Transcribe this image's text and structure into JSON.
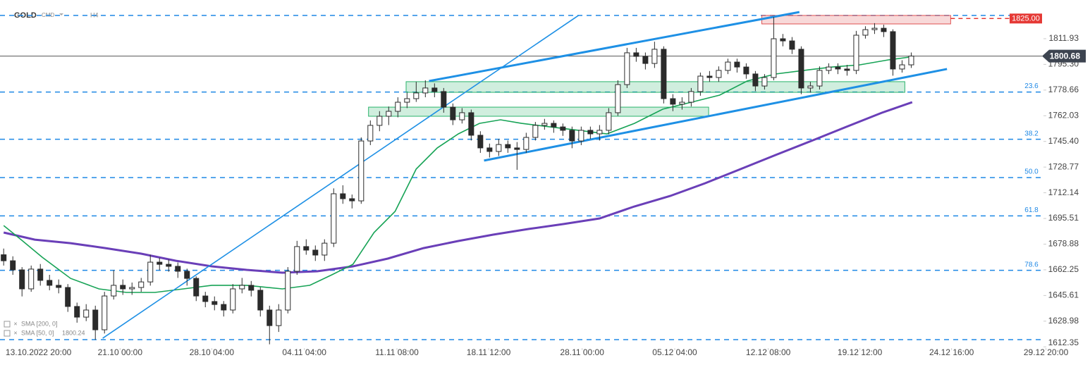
{
  "chart_data": {
    "type": "candlestick",
    "symbol": "GOLD",
    "market": "CMD",
    "interval": "H4",
    "xlim": [
      -0.4,
      118.5
    ],
    "ylim": [
      1612,
      1837
    ],
    "yticks": [
      1811.93,
      {
        "value": 1795.3,
        "label": "1795.30"
      },
      1778.66,
      1762.03,
      {
        "value": 1745.4,
        "label": "1745.40"
      },
      1728.77,
      1712.14,
      1695.51,
      1678.88,
      1662.25,
      1645.61,
      1628.98,
      1612.35
    ],
    "xticks": [
      {
        "value": 3.8,
        "label": "13.10.2022 20:00"
      },
      {
        "value": 12.7,
        "label": "21.10 00:00"
      },
      {
        "value": 22.7,
        "label": "28.10 04:00"
      },
      {
        "value": 32.8,
        "label": "04.11 04:00"
      },
      {
        "value": 42.9,
        "label": "11.11 08:00"
      },
      {
        "value": 52.9,
        "label": "18.11 12:00"
      },
      {
        "value": 63.1,
        "label": "28.11 00:00"
      },
      {
        "value": 73.2,
        "label": "05.12 04:00"
      },
      {
        "value": 83.4,
        "label": "12.12 08:00"
      },
      {
        "value": 93.4,
        "label": "19.12 12:00"
      },
      {
        "value": 103.4,
        "label": "24.12 16:00"
      },
      {
        "value": 113.7,
        "label": "29.12 20:00"
      }
    ],
    "up_color": "#ffffff",
    "down_color": "#2b2b2b",
    "wick_color": "#2b2b2b",
    "candles": [
      [
        1672,
        1676,
        1665,
        1668.1
      ],
      [
        1668.1,
        1671,
        1659,
        1662.2
      ],
      [
        1662.2,
        1664,
        1645,
        1649.9
      ],
      [
        1649.9,
        1665,
        1648,
        1662.7
      ],
      [
        1662.7,
        1666,
        1652,
        1655.4
      ],
      [
        1655.4,
        1659,
        1649,
        1652.2
      ],
      [
        1652.2,
        1656,
        1647,
        1650.8
      ],
      [
        1650.8,
        1653,
        1635,
        1638.5
      ],
      [
        1638.5,
        1641,
        1628,
        1631.6
      ],
      [
        1631.6,
        1640,
        1629,
        1636.2
      ],
      [
        1636.2,
        1639,
        1617,
        1623.4
      ],
      [
        1623.4,
        1648,
        1621,
        1645.3
      ],
      [
        1645.3,
        1662,
        1643,
        1652.2
      ],
      [
        1652.2,
        1656,
        1646,
        1649.9
      ],
      [
        1649.9,
        1654,
        1646,
        1650.8
      ],
      [
        1650.8,
        1657,
        1648,
        1654.4
      ],
      [
        1654.4,
        1672,
        1652,
        1667.2
      ],
      [
        1667.2,
        1670,
        1662,
        1665.8
      ],
      [
        1665.8,
        1669,
        1661,
        1664.5
      ],
      [
        1664.5,
        1667,
        1657,
        1661.3
      ],
      [
        1661.3,
        1663,
        1652,
        1656.7
      ],
      [
        1656.7,
        1658,
        1642,
        1645.3
      ],
      [
        1645.3,
        1648,
        1638,
        1641.7
      ],
      [
        1641.7,
        1645,
        1636,
        1639.8
      ],
      [
        1639.8,
        1642,
        1632,
        1636.2
      ],
      [
        1636.2,
        1653,
        1634,
        1649.9
      ],
      [
        1649.9,
        1657,
        1647,
        1652.2
      ],
      [
        1652.2,
        1655,
        1645,
        1649.0
      ],
      [
        1649.0,
        1651,
        1632,
        1636.2
      ],
      [
        1636.2,
        1639,
        1614,
        1626.1
      ],
      [
        1626.1,
        1640,
        1622,
        1636.2
      ],
      [
        1636.2,
        1664,
        1634,
        1661.3
      ],
      [
        1661.3,
        1681,
        1659,
        1677.3
      ],
      [
        1677.3,
        1682,
        1672,
        1675.0
      ],
      [
        1675.0,
        1678,
        1668,
        1671.8
      ],
      [
        1671.8,
        1682,
        1668,
        1679.5
      ],
      [
        1679.5,
        1715,
        1677,
        1711.5
      ],
      [
        1711.5,
        1717,
        1705,
        1708.3
      ],
      [
        1708.3,
        1711,
        1702,
        1706.9
      ],
      [
        1706.9,
        1748,
        1705,
        1745.7
      ],
      [
        1745.7,
        1759,
        1743,
        1755.8
      ],
      [
        1755.8,
        1765,
        1752,
        1761.7
      ],
      [
        1761.7,
        1768,
        1756,
        1764.9
      ],
      [
        1764.9,
        1774,
        1761,
        1770.8
      ],
      [
        1770.8,
        1777,
        1767,
        1773.1
      ],
      [
        1773.1,
        1784,
        1771,
        1776.8
      ],
      [
        1776.8,
        1785,
        1774,
        1780.0
      ],
      [
        1780.0,
        1783,
        1774,
        1777.7
      ],
      [
        1777.7,
        1780,
        1764,
        1767.6
      ],
      [
        1767.6,
        1770,
        1756,
        1759.4
      ],
      [
        1759.4,
        1767,
        1757,
        1764.0
      ],
      [
        1764.0,
        1766,
        1746,
        1749.4
      ],
      [
        1749.4,
        1752,
        1738,
        1741.2
      ],
      [
        1741.2,
        1744,
        1735,
        1738.9
      ],
      [
        1738.9,
        1747,
        1736,
        1743.4
      ],
      [
        1743.4,
        1746,
        1738,
        1741.2
      ],
      [
        1741.2,
        1745,
        1727,
        1740.2
      ],
      [
        1740.2,
        1751,
        1738,
        1748.0
      ],
      [
        1748.0,
        1758,
        1746,
        1755.8
      ],
      [
        1755.8,
        1760,
        1753,
        1757.1
      ],
      [
        1757.1,
        1759,
        1751,
        1754.8
      ],
      [
        1754.8,
        1757,
        1749,
        1752.6
      ],
      [
        1752.6,
        1755,
        1741,
        1745.7
      ],
      [
        1745.7,
        1755,
        1743,
        1752.6
      ],
      [
        1752.6,
        1755,
        1747,
        1750.3
      ],
      [
        1750.3,
        1756,
        1746,
        1752.6
      ],
      [
        1752.6,
        1767,
        1750,
        1764.0
      ],
      [
        1764.0,
        1785,
        1762,
        1782.2
      ],
      [
        1782.2,
        1806,
        1780,
        1802.8
      ],
      [
        1802.8,
        1806,
        1797,
        1800.5
      ],
      [
        1800.5,
        1803,
        1792,
        1795.9
      ],
      [
        1795.9,
        1810,
        1793,
        1805.1
      ],
      [
        1805.1,
        1807,
        1770,
        1773.1
      ],
      [
        1773.1,
        1776,
        1765,
        1769.5
      ],
      [
        1769.5,
        1774,
        1766,
        1770.8
      ],
      [
        1770.8,
        1780,
        1768,
        1777.7
      ],
      [
        1777.7,
        1790,
        1775,
        1787.7
      ],
      [
        1787.7,
        1791,
        1784,
        1786.8
      ],
      [
        1786.8,
        1794,
        1784,
        1791.4
      ],
      [
        1791.4,
        1799,
        1789,
        1796.8
      ],
      [
        1796.8,
        1799,
        1790,
        1793.6
      ],
      [
        1793.6,
        1796,
        1786,
        1789.1
      ],
      [
        1789.1,
        1791,
        1778,
        1781.3
      ],
      [
        1781.3,
        1789,
        1779,
        1786.8
      ],
      [
        1786.8,
        1826,
        1785,
        1811.9
      ],
      [
        1811.9,
        1815,
        1807,
        1810.5
      ],
      [
        1810.5,
        1813,
        1802,
        1805.1
      ],
      [
        1805.1,
        1807,
        1776,
        1780.0
      ],
      [
        1780.0,
        1784,
        1777,
        1781.3
      ],
      [
        1781.3,
        1794,
        1779,
        1791.4
      ],
      [
        1791.4,
        1796,
        1789,
        1793.6
      ],
      [
        1793.6,
        1796,
        1789,
        1792.3
      ],
      [
        1792.3,
        1795,
        1788,
        1791.4
      ],
      [
        1791.4,
        1817,
        1789,
        1814.2
      ],
      [
        1814.2,
        1820,
        1812,
        1817.8
      ],
      [
        1817.8,
        1822,
        1815,
        1818.7
      ],
      [
        1818.7,
        1821,
        1813,
        1816.5
      ],
      [
        1816.5,
        1818,
        1788,
        1792.3
      ],
      [
        1792.3,
        1798,
        1790,
        1795.0
      ],
      [
        1795.0,
        1803,
        1793,
        1800.68
      ]
    ],
    "series": [
      {
        "name": "SMA [200, 0]",
        "color": "#6a3fb8",
        "x": [
          0,
          3.4,
          7.3,
          11.1,
          15.0,
          18.8,
          22.7,
          26.5,
          30.4,
          34.2,
          38.1,
          41.9,
          45.8,
          49.6,
          53.4,
          57.3,
          61.1,
          65.0,
          68.8,
          72.7,
          76.5,
          80.4,
          84.2,
          88.1,
          91.9,
          95.8,
          99.1
        ],
        "values": [
          1686.4,
          1681.8,
          1679.5,
          1676.3,
          1672.7,
          1668.1,
          1664.5,
          1662.2,
          1660.4,
          1661.3,
          1664.5,
          1669.5,
          1676.3,
          1680.9,
          1685.0,
          1688.7,
          1691.9,
          1695.5,
          1703.3,
          1710.1,
          1718.3,
          1727.5,
          1736.6,
          1745.7,
          1754.8,
          1764.0,
          1770.8
        ]
      },
      {
        "name": "SMA [50, 0]",
        "color": "#17a356",
        "last_value": 1800.24,
        "x": [
          0,
          1.9,
          4.2,
          7.3,
          10.4,
          13.4,
          16.5,
          19.6,
          22.7,
          26.5,
          30.4,
          33.4,
          35.8,
          38.1,
          40.4,
          42.7,
          45.0,
          47.3,
          49.6,
          51.9,
          54.2,
          56.5,
          59.6,
          62.7,
          65.8,
          68.8,
          71.9,
          75.0,
          78.1,
          81.1,
          84.2,
          87.3,
          90.4,
          93.4,
          96.5,
          99.1
        ],
        "values": [
          1690.9,
          1681.8,
          1670.4,
          1656.7,
          1649.9,
          1647.6,
          1647.6,
          1649.9,
          1652.2,
          1652.2,
          1649.9,
          1652.2,
          1659.0,
          1665.8,
          1686.4,
          1700.1,
          1727.5,
          1741.2,
          1750.3,
          1757.1,
          1759.4,
          1757.1,
          1754.8,
          1752.6,
          1750.3,
          1757.1,
          1766.3,
          1770.8,
          1775.4,
          1784.5,
          1789.1,
          1791.4,
          1793.6,
          1795.0,
          1798.2,
          1800.24
        ]
      }
    ],
    "fib_color": "#1e88e5",
    "fib_levels": [
      {
        "price": 1827.0
      },
      {
        "price": 1777.4,
        "label": "23.6"
      },
      {
        "price": 1746.8,
        "label": "38.2"
      },
      {
        "price": 1722.0,
        "label": "50.0"
      },
      {
        "price": 1697.2,
        "label": "61.8"
      },
      {
        "price": 1661.9,
        "label": "78.6"
      },
      {
        "price": 1617.0
      }
    ],
    "trend_color": "#1e90e5",
    "trendlines": [
      {
        "x": [
          10.8,
          62.7
        ],
        "y": [
          1617.9,
          1827.0
        ],
        "width": 1.6
      },
      {
        "x": [
          46.4,
          86.8
        ],
        "y": [
          1784.5,
          1829.2
        ],
        "width": 3
      },
      {
        "x": [
          52.4,
          102.9
        ],
        "y": [
          1733.0,
          1792.3
        ],
        "width": 3
      }
    ],
    "zones": [
      {
        "x": [
          43.9,
          98.3
        ],
        "y": [
          1777.2,
          1784.1
        ],
        "color": "#2ab36b"
      },
      {
        "x": [
          39.8,
          76.9
        ],
        "y": [
          1761.7,
          1767.6
        ],
        "color": "#2ab36b"
      },
      {
        "x": [
          82.7,
          103.3
        ],
        "y": [
          1821.5,
          1827.0
        ],
        "color": "#e05252"
      }
    ],
    "alert_level": {
      "value": 1825,
      "label": "1825.00"
    },
    "alert_color": "#e53935",
    "last_price": 1800.68
  }
}
